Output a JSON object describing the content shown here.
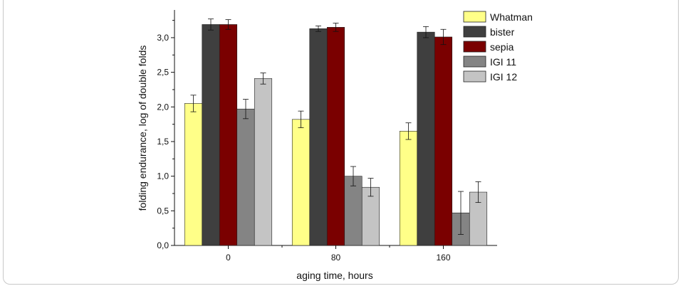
{
  "chart_data": {
    "type": "bar",
    "xlabel": "aging time, hours",
    "ylabel": "folding endurance, log of double folds",
    "categories": [
      "0",
      "80",
      "160"
    ],
    "ylim": [
      0,
      3.4
    ],
    "yticks": [
      "0,0",
      "0,5",
      "1,0",
      "1,5",
      "2,0",
      "2,5",
      "3,0"
    ],
    "ytick_values": [
      0,
      0.5,
      1.0,
      1.5,
      2.0,
      2.5,
      3.0
    ],
    "legend_position": "top-right",
    "grid": false,
    "series": [
      {
        "name": "Whatman",
        "color": "#ffff88",
        "values": [
          2.05,
          1.82,
          1.65
        ],
        "errors": [
          0.12,
          0.12,
          0.12
        ]
      },
      {
        "name": "bister",
        "color": "#3f3f3f",
        "values": [
          3.19,
          3.13,
          3.08
        ],
        "errors": [
          0.08,
          0.04,
          0.08
        ]
      },
      {
        "name": "sepia",
        "color": "#7a0000",
        "values": [
          3.19,
          3.15,
          3.01
        ],
        "errors": [
          0.07,
          0.06,
          0.11
        ]
      },
      {
        "name": "IGI 11",
        "color": "#848484",
        "values": [
          1.97,
          1.0,
          0.47
        ],
        "errors": [
          0.14,
          0.14,
          0.31
        ]
      },
      {
        "name": "IGI 12",
        "color": "#c4c4c4",
        "values": [
          2.41,
          0.84,
          0.77
        ],
        "errors": [
          0.08,
          0.13,
          0.15
        ]
      }
    ]
  }
}
